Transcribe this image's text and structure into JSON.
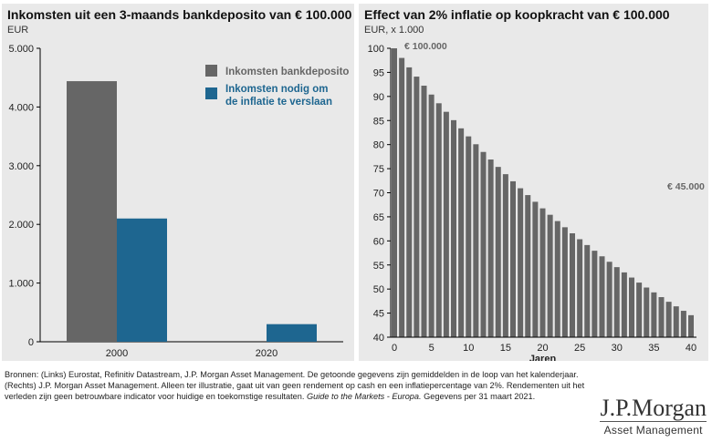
{
  "chart_data": [
    {
      "type": "bar",
      "title": "Inkomsten uit een 3-maands bankdeposito van € 100.000",
      "ylabel": "EUR",
      "categories": [
        "2000",
        "2020"
      ],
      "series": [
        {
          "name": "Inkomsten bankdeposito",
          "values": [
            4440,
            0
          ],
          "color": "#666666"
        },
        {
          "name": "Inkomsten nodig om de inflatie te verslaan",
          "values": [
            2100,
            300
          ],
          "color": "#1e6690"
        }
      ],
      "ylim": [
        0,
        5000
      ],
      "yticks": [
        "0",
        "1.000",
        "2.000",
        "3.000",
        "4.000",
        "5.000"
      ],
      "legend": "top-right"
    },
    {
      "type": "bar",
      "title": "Effect van 2% inflatie op koopkracht van € 100.000",
      "ylabel": "EUR, x 1.000",
      "xlabel": "Jaren",
      "x_start": 0,
      "x_end": 40,
      "rate": 0.02,
      "start_value": 100,
      "ylim": [
        40,
        100
      ],
      "yticks": [
        "40",
        "45",
        "50",
        "55",
        "60",
        "65",
        "70",
        "75",
        "80",
        "85",
        "90",
        "95",
        "100"
      ],
      "xticks": [
        "0",
        "5",
        "10",
        "15",
        "20",
        "25",
        "30",
        "35",
        "40"
      ],
      "annotations": [
        "€ 100.000",
        "€ 45.000"
      ],
      "color": "#666666"
    }
  ],
  "footnote": {
    "text": "Bronnen: (Links) Eurostat, Refinitiv Datastream, J.P. Morgan Asset Management. De getoonde gegevens zijn gemiddelden in de loop van het kalenderjaar. (Rechts) J.P. Morgan Asset Management. Alleen ter illustratie, gaat uit van geen rendement op cash en een inflatiepercentage van 2%. Rendementen uit het verleden zijn geen betrouwbare indicator voor huidige en toekomstige resultaten. ",
    "italic": "Guide to the Markets - Europa.",
    "end": " Gegevens per 31 maart 2021."
  },
  "logo": {
    "name": "J.P.Morgan",
    "sub": "Asset Management"
  }
}
